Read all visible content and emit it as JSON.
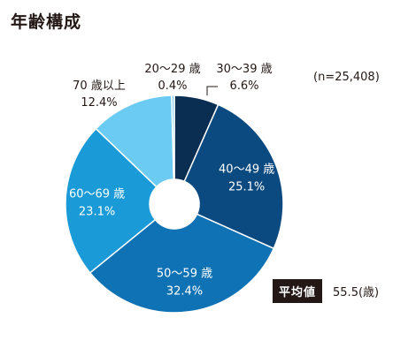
{
  "title": "年齢構成",
  "sample_size": "(n=25,408)",
  "average": {
    "badge": "平均値",
    "value": "55.5(歳)"
  },
  "colors": {
    "20-29": "#8bd4f0",
    "30-39": "#0a2d52",
    "40-49": "#0b4a80",
    "50-59": "#0f72b5",
    "60-69": "#1a9ad6",
    "70+": "#6ccbf2",
    "label_light": "#ffffff",
    "label_dark": "#231815",
    "leader": "#231815"
  },
  "chart_data": {
    "type": "pie",
    "title": "年齢構成",
    "donut": true,
    "start_angle_deg": 0,
    "direction": "clockwise",
    "slices": [
      {
        "label": "30〜39 歳",
        "value": 6.6,
        "value_label": "6.6%",
        "color": "#0a2d52",
        "label_position": "outside"
      },
      {
        "label": "40〜49 歳",
        "value": 25.1,
        "value_label": "25.1%",
        "color": "#0b4a80",
        "label_position": "inside"
      },
      {
        "label": "50〜59 歳",
        "value": 32.4,
        "value_label": "32.4%",
        "color": "#0f72b5",
        "label_position": "inside"
      },
      {
        "label": "60〜69 歳",
        "value": 23.1,
        "value_label": "23.1%",
        "color": "#1a9ad6",
        "label_position": "inside"
      },
      {
        "label": "70 歳以上",
        "value": 12.4,
        "value_label": "12.4%",
        "color": "#6ccbf2",
        "label_position": "outside"
      },
      {
        "label": "20〜29 歳",
        "value": 0.4,
        "value_label": "0.4%",
        "color": "#8bd4f0",
        "label_position": "outside"
      }
    ]
  }
}
